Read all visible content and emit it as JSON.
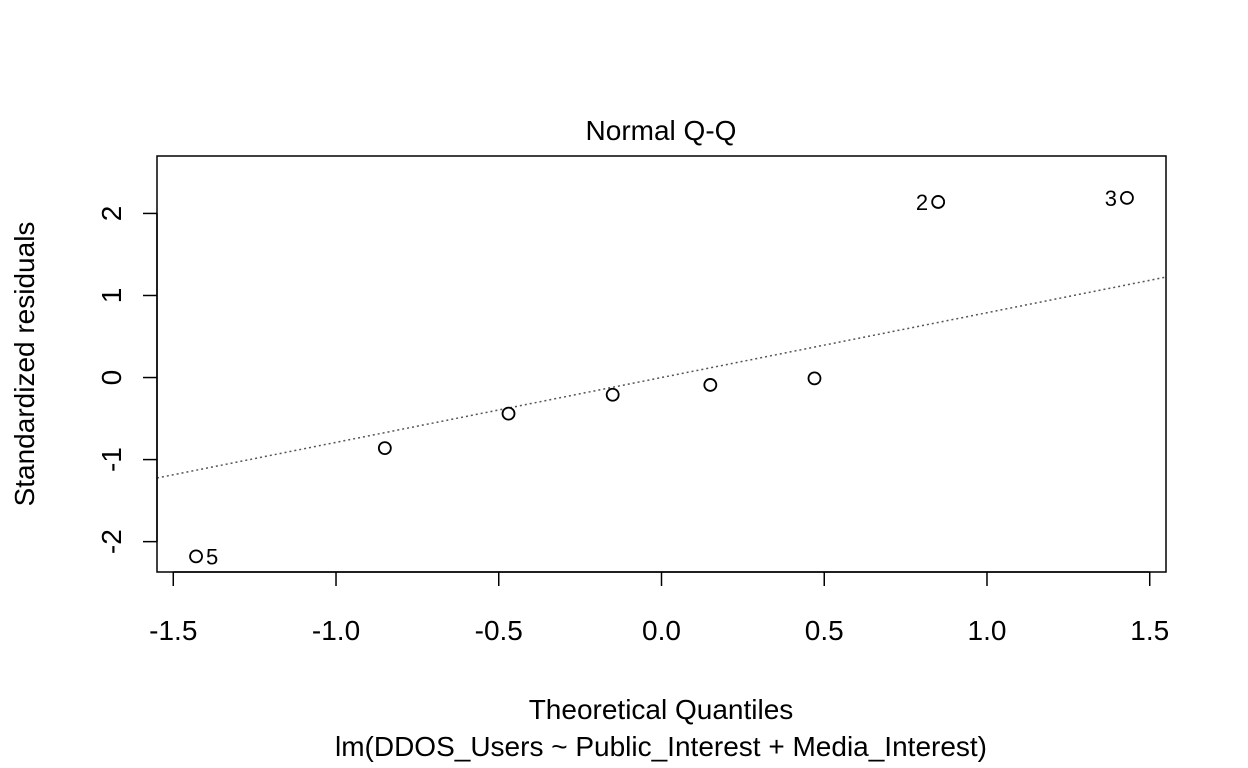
{
  "chart_data": {
    "type": "scatter",
    "title": "Normal Q-Q",
    "xlabel": "Theoretical Quantiles",
    "ylabel": "Standardized residuals",
    "subtitle": "lm(DDOS_Users ~ Public_Interest + Media_Interest)",
    "xlim": [
      -1.55,
      1.55
    ],
    "ylim": [
      -2.37,
      2.7
    ],
    "x_ticks": [
      {
        "value": -1.5,
        "label": "-1.5"
      },
      {
        "value": -1.0,
        "label": "-1.0"
      },
      {
        "value": -0.5,
        "label": "-0.5"
      },
      {
        "value": 0.0,
        "label": "0.0"
      },
      {
        "value": 0.5,
        "label": "0.5"
      },
      {
        "value": 1.0,
        "label": "1.0"
      },
      {
        "value": 1.5,
        "label": "1.5"
      }
    ],
    "y_ticks": [
      {
        "value": -2,
        "label": "-2"
      },
      {
        "value": -1,
        "label": "-1"
      },
      {
        "value": 0,
        "label": "0"
      },
      {
        "value": 1,
        "label": "1"
      },
      {
        "value": 2,
        "label": "2"
      }
    ],
    "points": [
      {
        "x": -1.43,
        "y": -2.18,
        "label": "5",
        "label_side": "right"
      },
      {
        "x": -0.85,
        "y": -0.86,
        "label": ""
      },
      {
        "x": -0.47,
        "y": -0.44,
        "label": ""
      },
      {
        "x": -0.15,
        "y": -0.21,
        "label": ""
      },
      {
        "x": 0.15,
        "y": -0.09,
        "label": ""
      },
      {
        "x": 0.47,
        "y": -0.01,
        "label": ""
      },
      {
        "x": 0.85,
        "y": 2.14,
        "label": "2",
        "label_side": "left"
      },
      {
        "x": 1.43,
        "y": 2.19,
        "label": "3",
        "label_side": "left"
      }
    ],
    "reference_line": {
      "slope": 0.79,
      "intercept": 0.0,
      "style": "dotted"
    },
    "grid": false,
    "legend": "none"
  }
}
